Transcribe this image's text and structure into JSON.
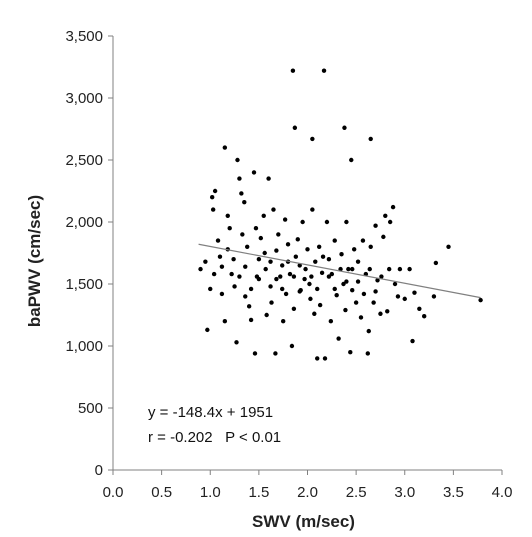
{
  "chart_data": {
    "type": "scatter",
    "xlabel": "SWV (m/sec)",
    "ylabel": "baPWV (cm/sec)",
    "xlim": [
      0.0,
      4.0
    ],
    "ylim": [
      0,
      3500
    ],
    "xticks": [
      0.0,
      0.5,
      1.0,
      1.5,
      2.0,
      2.5,
      3.0,
      3.5,
      4.0
    ],
    "xtick_labels": [
      "0.0",
      "0.5",
      "1.0",
      "1.5",
      "2.0",
      "2.5",
      "3.0",
      "3.5",
      "4.0"
    ],
    "yticks": [
      0,
      500,
      1000,
      1500,
      2000,
      2500,
      3000,
      3500
    ],
    "ytick_labels": [
      "0",
      "500",
      "1,000",
      "1,500",
      "2,000",
      "2,500",
      "3,000",
      "3,500"
    ],
    "grid": false,
    "point_color": "#000000",
    "trendline": {
      "slope": -148.4,
      "intercept": 1951,
      "x_range": [
        0.88,
        3.78
      ],
      "color": "#808080"
    },
    "annotations": [
      "y = -148.4x + 1951",
      "r = -0.202   P < 0.01"
    ],
    "points": [
      [
        1.85,
        3220
      ],
      [
        2.17,
        3220
      ],
      [
        1.87,
        2760
      ],
      [
        2.38,
        2760
      ],
      [
        2.05,
        2670
      ],
      [
        2.65,
        2670
      ],
      [
        1.15,
        2600
      ],
      [
        1.28,
        2500
      ],
      [
        2.45,
        2500
      ],
      [
        0.9,
        1620
      ],
      [
        0.95,
        1680
      ],
      [
        1.0,
        1460
      ],
      [
        0.97,
        1130
      ],
      [
        1.05,
        2250
      ],
      [
        1.02,
        2200
      ],
      [
        1.03,
        2100
      ],
      [
        1.08,
        1850
      ],
      [
        1.1,
        1720
      ],
      [
        1.12,
        1640
      ],
      [
        1.15,
        1200
      ],
      [
        1.18,
        2050
      ],
      [
        1.2,
        1950
      ],
      [
        1.22,
        1580
      ],
      [
        1.25,
        1480
      ],
      [
        1.27,
        1030
      ],
      [
        1.3,
        2350
      ],
      [
        1.32,
        2230
      ],
      [
        1.35,
        2160
      ],
      [
        1.33,
        1900
      ],
      [
        1.38,
        1800
      ],
      [
        1.36,
        1400
      ],
      [
        1.4,
        1320
      ],
      [
        1.42,
        1210
      ],
      [
        1.45,
        2400
      ],
      [
        1.47,
        1950
      ],
      [
        1.46,
        940
      ],
      [
        1.48,
        1560
      ],
      [
        1.5,
        1700
      ],
      [
        1.52,
        1870
      ],
      [
        1.55,
        2050
      ],
      [
        1.57,
        1620
      ],
      [
        1.6,
        2350
      ],
      [
        1.58,
        1250
      ],
      [
        1.62,
        1480
      ],
      [
        1.65,
        2100
      ],
      [
        1.63,
        1350
      ],
      [
        1.68,
        1770
      ],
      [
        1.7,
        1900
      ],
      [
        1.67,
        940
      ],
      [
        1.72,
        1560
      ],
      [
        1.74,
        1650
      ],
      [
        1.75,
        1200
      ],
      [
        1.77,
        2020
      ],
      [
        1.8,
        1820
      ],
      [
        1.78,
        1420
      ],
      [
        1.82,
        1580
      ],
      [
        1.84,
        1000
      ],
      [
        1.86,
        1300
      ],
      [
        1.88,
        1720
      ],
      [
        1.9,
        1860
      ],
      [
        1.92,
        1650
      ],
      [
        1.95,
        2000
      ],
      [
        1.93,
        1450
      ],
      [
        1.97,
        1540
      ],
      [
        2.0,
        1780
      ],
      [
        2.02,
        1500
      ],
      [
        2.03,
        1380
      ],
      [
        2.05,
        2100
      ],
      [
        2.07,
        1260
      ],
      [
        2.08,
        1680
      ],
      [
        2.1,
        900
      ],
      [
        2.12,
        1800
      ],
      [
        2.13,
        1330
      ],
      [
        2.15,
        1590
      ],
      [
        2.18,
        900
      ],
      [
        2.2,
        2000
      ],
      [
        2.22,
        1700
      ],
      [
        2.24,
        1200
      ],
      [
        2.25,
        1580
      ],
      [
        2.28,
        1850
      ],
      [
        2.3,
        1410
      ],
      [
        2.32,
        1060
      ],
      [
        2.35,
        1740
      ],
      [
        2.37,
        1500
      ],
      [
        2.39,
        1290
      ],
      [
        2.4,
        2000
      ],
      [
        2.42,
        1620
      ],
      [
        2.44,
        950
      ],
      [
        2.46,
        1450
      ],
      [
        2.48,
        1780
      ],
      [
        2.5,
        1350
      ],
      [
        2.52,
        1680
      ],
      [
        2.55,
        1230
      ],
      [
        2.57,
        1850
      ],
      [
        2.6,
        1580
      ],
      [
        2.62,
        940
      ],
      [
        2.63,
        1120
      ],
      [
        2.65,
        1800
      ],
      [
        2.68,
        1350
      ],
      [
        2.7,
        1970
      ],
      [
        2.72,
        1530
      ],
      [
        2.75,
        1260
      ],
      [
        2.78,
        1880
      ],
      [
        2.8,
        2050
      ],
      [
        2.82,
        1280
      ],
      [
        2.85,
        2000
      ],
      [
        2.88,
        2120
      ],
      [
        2.9,
        1500
      ],
      [
        2.93,
        1400
      ],
      [
        2.95,
        1620
      ],
      [
        3.0,
        1380
      ],
      [
        3.05,
        1620
      ],
      [
        3.08,
        1040
      ],
      [
        3.1,
        1430
      ],
      [
        3.15,
        1300
      ],
      [
        3.2,
        1240
      ],
      [
        3.3,
        1400
      ],
      [
        3.32,
        1670
      ],
      [
        3.45,
        1800
      ],
      [
        3.78,
        1370
      ],
      [
        1.04,
        1580
      ],
      [
        1.12,
        1420
      ],
      [
        1.18,
        1780
      ],
      [
        1.24,
        1700
      ],
      [
        1.3,
        1560
      ],
      [
        1.36,
        1640
      ],
      [
        1.42,
        1460
      ],
      [
        1.5,
        1540
      ],
      [
        1.56,
        1750
      ],
      [
        1.62,
        1680
      ],
      [
        1.68,
        1540
      ],
      [
        1.74,
        1460
      ],
      [
        1.8,
        1680
      ],
      [
        1.86,
        1560
      ],
      [
        1.92,
        1440
      ],
      [
        1.98,
        1620
      ],
      [
        2.04,
        1560
      ],
      [
        2.1,
        1460
      ],
      [
        2.16,
        1720
      ],
      [
        2.22,
        1560
      ],
      [
        2.28,
        1460
      ],
      [
        2.34,
        1620
      ],
      [
        2.4,
        1520
      ],
      [
        2.46,
        1620
      ],
      [
        2.52,
        1520
      ],
      [
        2.58,
        1420
      ],
      [
        2.64,
        1620
      ],
      [
        2.7,
        1440
      ],
      [
        2.76,
        1560
      ],
      [
        2.84,
        1620
      ]
    ]
  }
}
